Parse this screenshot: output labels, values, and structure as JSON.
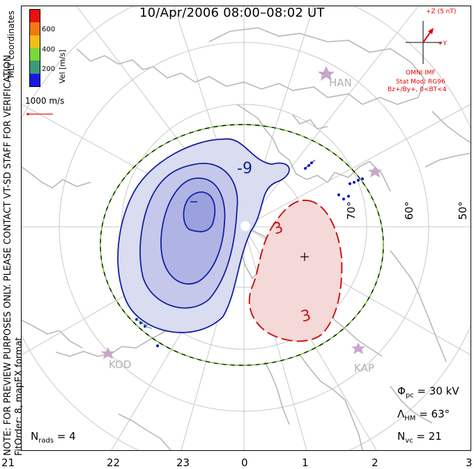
{
  "title": "10/Apr/2006 08:00–08:02 UT",
  "left_note_1": "NOTE: FOR PREVIEW PURPOSES ONLY. PLEASE CONTACT VT-SD STAFF FOR VERIFICATION.",
  "left_note_2": "FitOrder: 8, mapEX format",
  "colorbar": {
    "title": "MLT coordinates",
    "unit_label": "Vel [m/s]",
    "ticks": [
      "600",
      "400",
      "200"
    ],
    "colors": [
      "#e81010",
      "#f07810",
      "#f0c018",
      "#7ad838",
      "#3c9a7a",
      "#1818e0"
    ]
  },
  "velocity_scale_label": "1000 m/s",
  "imf": {
    "z_label": "+Z (5 nT)",
    "y_label": "+Y",
    "source": "OMNI IMF",
    "model": "Stat Mod: RG96",
    "condition": "Bz+/By+, 0<BT<4"
  },
  "contour_labels": {
    "negative": "-9",
    "positive": "3",
    "positive_2": "3"
  },
  "stations": [
    "HAN",
    "KOD",
    "KAP"
  ],
  "latitude_labels": [
    "70°",
    "60°",
    "50°"
  ],
  "mlt_labels": [
    "21",
    "22",
    "23",
    "0",
    "1",
    "2",
    "3"
  ],
  "stats": {
    "phi_pc_sym": "Φ",
    "phi_pc_sub": "pc",
    "phi_pc_val": " = 30 kV",
    "lambda_hm_sym": "Λ",
    "lambda_hm_sub": "HM",
    "lambda_hm_val": " = 63°",
    "n_vc_sym": "N",
    "n_vc_sub": "vc",
    "n_vc_val": " = 21",
    "n_rads_sym": "N",
    "n_rads_sub": "rads",
    "n_rads_val": " = 4"
  },
  "colors": {
    "negative_fill": "#dadcf0",
    "negative_line": "#1020a0",
    "positive_fill": "#f5d8d8",
    "positive_line": "#c81818",
    "boundary_dash": "#7ad838",
    "grid": "#c8c8c8",
    "coast": "#b8b8b8"
  }
}
